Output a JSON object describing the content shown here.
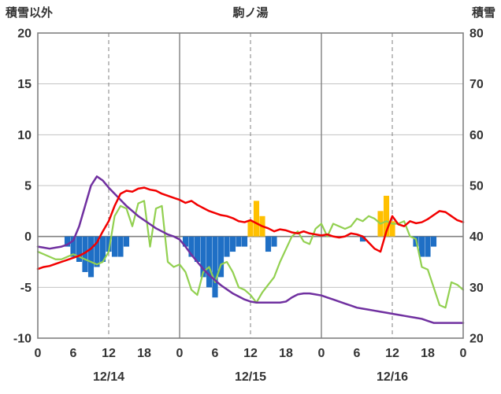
{
  "header": {
    "left_axis_title": "積雪以外",
    "title": "駒ノ湯",
    "right_axis_title": "積雪"
  },
  "colors": {
    "red": "#f20000",
    "purple": "#7030a0",
    "green": "#92d050",
    "blue": "#1f6fc5",
    "orange": "#ffc000",
    "grid": "#c3c3c3",
    "grid_strong": "#808080",
    "text": "#333333"
  },
  "chart_data": {
    "type": "combo",
    "title": "駒ノ湯",
    "x_unit": "hour",
    "x_range": [
      0,
      72
    ],
    "x_ticks": [
      {
        "x": 0,
        "label": "0"
      },
      {
        "x": 6,
        "label": "6"
      },
      {
        "x": 12,
        "label": "12"
      },
      {
        "x": 18,
        "label": "18"
      },
      {
        "x": 24,
        "label": "0"
      },
      {
        "x": 30,
        "label": "6"
      },
      {
        "x": 36,
        "label": "12"
      },
      {
        "x": 42,
        "label": "18"
      },
      {
        "x": 48,
        "label": "0"
      },
      {
        "x": 54,
        "label": "6"
      },
      {
        "x": 60,
        "label": "12"
      },
      {
        "x": 66,
        "label": "18"
      },
      {
        "x": 72,
        "label": "0"
      }
    ],
    "date_labels": [
      {
        "x": 12,
        "label": "12/14"
      },
      {
        "x": 36,
        "label": "12/15"
      },
      {
        "x": 60,
        "label": "12/16"
      }
    ],
    "vertical_gridlines": {
      "dashed": [
        12,
        36,
        60
      ],
      "solid": [
        24,
        48
      ]
    },
    "left_axis": {
      "title": "積雪以外",
      "max": 20,
      "min": -10,
      "ticks": [
        20,
        15,
        10,
        5,
        0,
        -5,
        -10
      ]
    },
    "right_axis": {
      "title": "積雪",
      "max": 80,
      "min": 20,
      "ticks": [
        80,
        70,
        60,
        50,
        40,
        30,
        20
      ]
    },
    "series": [
      {
        "name": "blue-bars",
        "type": "bar",
        "axis": "left",
        "color": "blue",
        "points": [
          {
            "x": 5,
            "value": -1.0
          },
          {
            "x": 6,
            "value": -2.0
          },
          {
            "x": 7,
            "value": -2.5
          },
          {
            "x": 8,
            "value": -3.5
          },
          {
            "x": 9,
            "value": -4.0
          },
          {
            "x": 10,
            "value": -3.0
          },
          {
            "x": 11,
            "value": -2.5
          },
          {
            "x": 12,
            "value": -1.5
          },
          {
            "x": 13,
            "value": -2.0
          },
          {
            "x": 14,
            "value": -2.0
          },
          {
            "x": 15,
            "value": -1.0
          },
          {
            "x": 25,
            "value": -1.0
          },
          {
            "x": 26,
            "value": -2.0
          },
          {
            "x": 27,
            "value": -2.5
          },
          {
            "x": 28,
            "value": -4.0
          },
          {
            "x": 29,
            "value": -5.0
          },
          {
            "x": 30,
            "value": -6.0
          },
          {
            "x": 31,
            "value": -4.0
          },
          {
            "x": 32,
            "value": -2.0
          },
          {
            "x": 33,
            "value": -1.5
          },
          {
            "x": 34,
            "value": -1.0
          },
          {
            "x": 35,
            "value": -1.0
          },
          {
            "x": 39,
            "value": -1.5
          },
          {
            "x": 40,
            "value": -1.0
          },
          {
            "x": 55,
            "value": -0.5
          },
          {
            "x": 64,
            "value": -1.0
          },
          {
            "x": 65,
            "value": -2.0
          },
          {
            "x": 66,
            "value": -2.0
          },
          {
            "x": 67,
            "value": -1.0
          }
        ]
      },
      {
        "name": "orange-bars",
        "type": "bar",
        "axis": "left",
        "color": "orange",
        "points": [
          {
            "x": 36,
            "value": 1.5
          },
          {
            "x": 37,
            "value": 3.5
          },
          {
            "x": 38,
            "value": 2.0
          },
          {
            "x": 58,
            "value": 2.5
          },
          {
            "x": 59,
            "value": 4.0
          },
          {
            "x": 60,
            "value": 1.5
          }
        ]
      },
      {
        "name": "green-line",
        "type": "line",
        "axis": "right",
        "color": "green",
        "width": 2.2,
        "x_start": 0,
        "x_step": 1,
        "values": [
          37,
          36.5,
          36,
          35.5,
          35.5,
          36,
          36.5,
          36,
          35.5,
          35,
          34.5,
          35,
          37,
          44,
          46,
          45.5,
          42,
          46.5,
          47,
          38,
          45.5,
          46,
          35,
          34,
          34.5,
          33,
          29.5,
          28.5,
          33,
          34,
          31,
          34.5,
          35,
          33,
          30,
          29.5,
          28.5,
          27,
          29,
          30.5,
          32,
          35,
          37.5,
          40,
          41,
          39,
          38.5,
          41.5,
          42.5,
          40,
          42.5,
          42,
          41.5,
          42,
          43.5,
          43,
          44,
          43.5,
          42.5,
          43,
          42.5,
          42.5,
          43,
          40,
          39.5,
          34,
          33.5,
          30,
          26.5,
          26,
          31,
          30.5,
          29.5
        ]
      },
      {
        "name": "purple-line",
        "type": "line",
        "axis": "left",
        "color": "purple",
        "width": 2.5,
        "x_start": 0,
        "x_step": 1,
        "values": [
          -1.0,
          -1.1,
          -1.2,
          -1.1,
          -1.0,
          -0.8,
          -0.4,
          1.0,
          3.0,
          5.0,
          5.9,
          5.5,
          4.8,
          4.2,
          3.6,
          3.0,
          2.5,
          2.0,
          1.6,
          1.2,
          0.8,
          0.5,
          0.2,
          0.0,
          -0.3,
          -1.0,
          -1.8,
          -2.5,
          -3.2,
          -3.8,
          -4.3,
          -4.8,
          -5.2,
          -5.6,
          -5.9,
          -6.2,
          -6.4,
          -6.5,
          -6.5,
          -6.5,
          -6.5,
          -6.5,
          -6.4,
          -6.0,
          -5.7,
          -5.6,
          -5.6,
          -5.7,
          -5.8,
          -6.0,
          -6.2,
          -6.4,
          -6.6,
          -6.8,
          -7.0,
          -7.1,
          -7.2,
          -7.3,
          -7.4,
          -7.5,
          -7.6,
          -7.7,
          -7.8,
          -7.9,
          -8.0,
          -8.1,
          -8.3,
          -8.5,
          -8.5,
          -8.5,
          -8.5,
          -8.5,
          -8.5
        ]
      },
      {
        "name": "red-line",
        "type": "line",
        "axis": "left",
        "color": "red",
        "width": 2.5,
        "x_start": 0,
        "x_step": 1,
        "values": [
          -3.2,
          -3.0,
          -2.9,
          -2.7,
          -2.5,
          -2.3,
          -2.1,
          -1.9,
          -1.6,
          -1.2,
          -0.6,
          0.5,
          1.5,
          3.0,
          4.2,
          4.5,
          4.4,
          4.7,
          4.8,
          4.6,
          4.5,
          4.2,
          4.0,
          3.8,
          3.6,
          3.3,
          3.5,
          3.1,
          2.8,
          2.5,
          2.3,
          2.1,
          2.0,
          1.8,
          1.5,
          1.4,
          1.6,
          1.3,
          1.0,
          0.8,
          0.5,
          0.7,
          0.6,
          0.4,
          0.3,
          0.5,
          0.3,
          0.2,
          0.1,
          0.2,
          0.0,
          -0.1,
          0.0,
          0.3,
          0.2,
          0.0,
          -0.6,
          -1.2,
          -1.5,
          0.5,
          2.0,
          1.2,
          1.0,
          1.5,
          1.3,
          1.4,
          1.7,
          2.1,
          2.5,
          2.4,
          2.0,
          1.6,
          1.4
        ]
      }
    ]
  }
}
